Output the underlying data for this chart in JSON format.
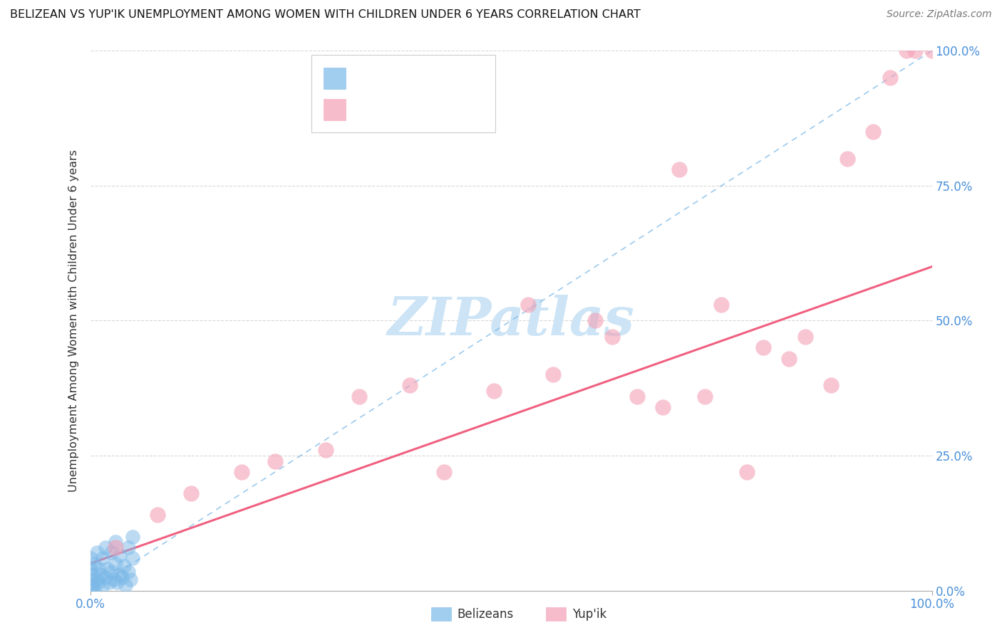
{
  "title": "BELIZEAN VS YUP'IK UNEMPLOYMENT AMONG WOMEN WITH CHILDREN UNDER 6 YEARS CORRELATION CHART",
  "source": "Source: ZipAtlas.com",
  "ylabel": "Unemployment Among Women with Children Under 6 years",
  "belizean_color": "#7ab8e8",
  "yupik_color": "#f4a0b5",
  "ref_line_color": "#7ab8e8",
  "trend_line_color": "#f06080",
  "watermark_color": "#cce4f5",
  "background_color": "#ffffff",
  "grid_color": "#d8d8d8",
  "bel_x": [
    0.0,
    0.0,
    0.0,
    0.0,
    0.2,
    0.3,
    0.5,
    0.5,
    0.8,
    0.8,
    1.0,
    1.0,
    1.2,
    1.5,
    1.5,
    1.8,
    1.8,
    2.0,
    2.2,
    2.5,
    2.5,
    2.8,
    3.0,
    3.0,
    3.2,
    3.5,
    3.5,
    3.8,
    4.0,
    4.2,
    4.5,
    4.5,
    4.8,
    5.0,
    5.0
  ],
  "bel_y": [
    0.0,
    2.0,
    4.0,
    6.0,
    1.0,
    3.0,
    0.5,
    5.0,
    2.0,
    7.0,
    1.5,
    4.0,
    3.0,
    1.0,
    6.0,
    2.5,
    8.0,
    4.0,
    1.5,
    3.5,
    7.0,
    2.0,
    5.0,
    9.0,
    1.5,
    3.0,
    6.5,
    2.5,
    4.5,
    1.0,
    3.5,
    8.0,
    2.0,
    6.0,
    10.0
  ],
  "yup_x": [
    3.0,
    8.0,
    12.0,
    18.0,
    22.0,
    28.0,
    32.0,
    38.0,
    42.0,
    48.0,
    52.0,
    55.0,
    60.0,
    62.0,
    65.0,
    68.0,
    70.0,
    73.0,
    75.0,
    78.0,
    80.0,
    83.0,
    85.0,
    88.0,
    90.0,
    93.0,
    95.0,
    97.0,
    98.0,
    100.0
  ],
  "yup_y": [
    8.0,
    14.0,
    18.0,
    22.0,
    24.0,
    26.0,
    36.0,
    38.0,
    22.0,
    37.0,
    53.0,
    40.0,
    50.0,
    47.0,
    36.0,
    34.0,
    78.0,
    36.0,
    53.0,
    22.0,
    45.0,
    43.0,
    47.0,
    38.0,
    80.0,
    85.0,
    95.0,
    100.0,
    100.0,
    100.0
  ]
}
